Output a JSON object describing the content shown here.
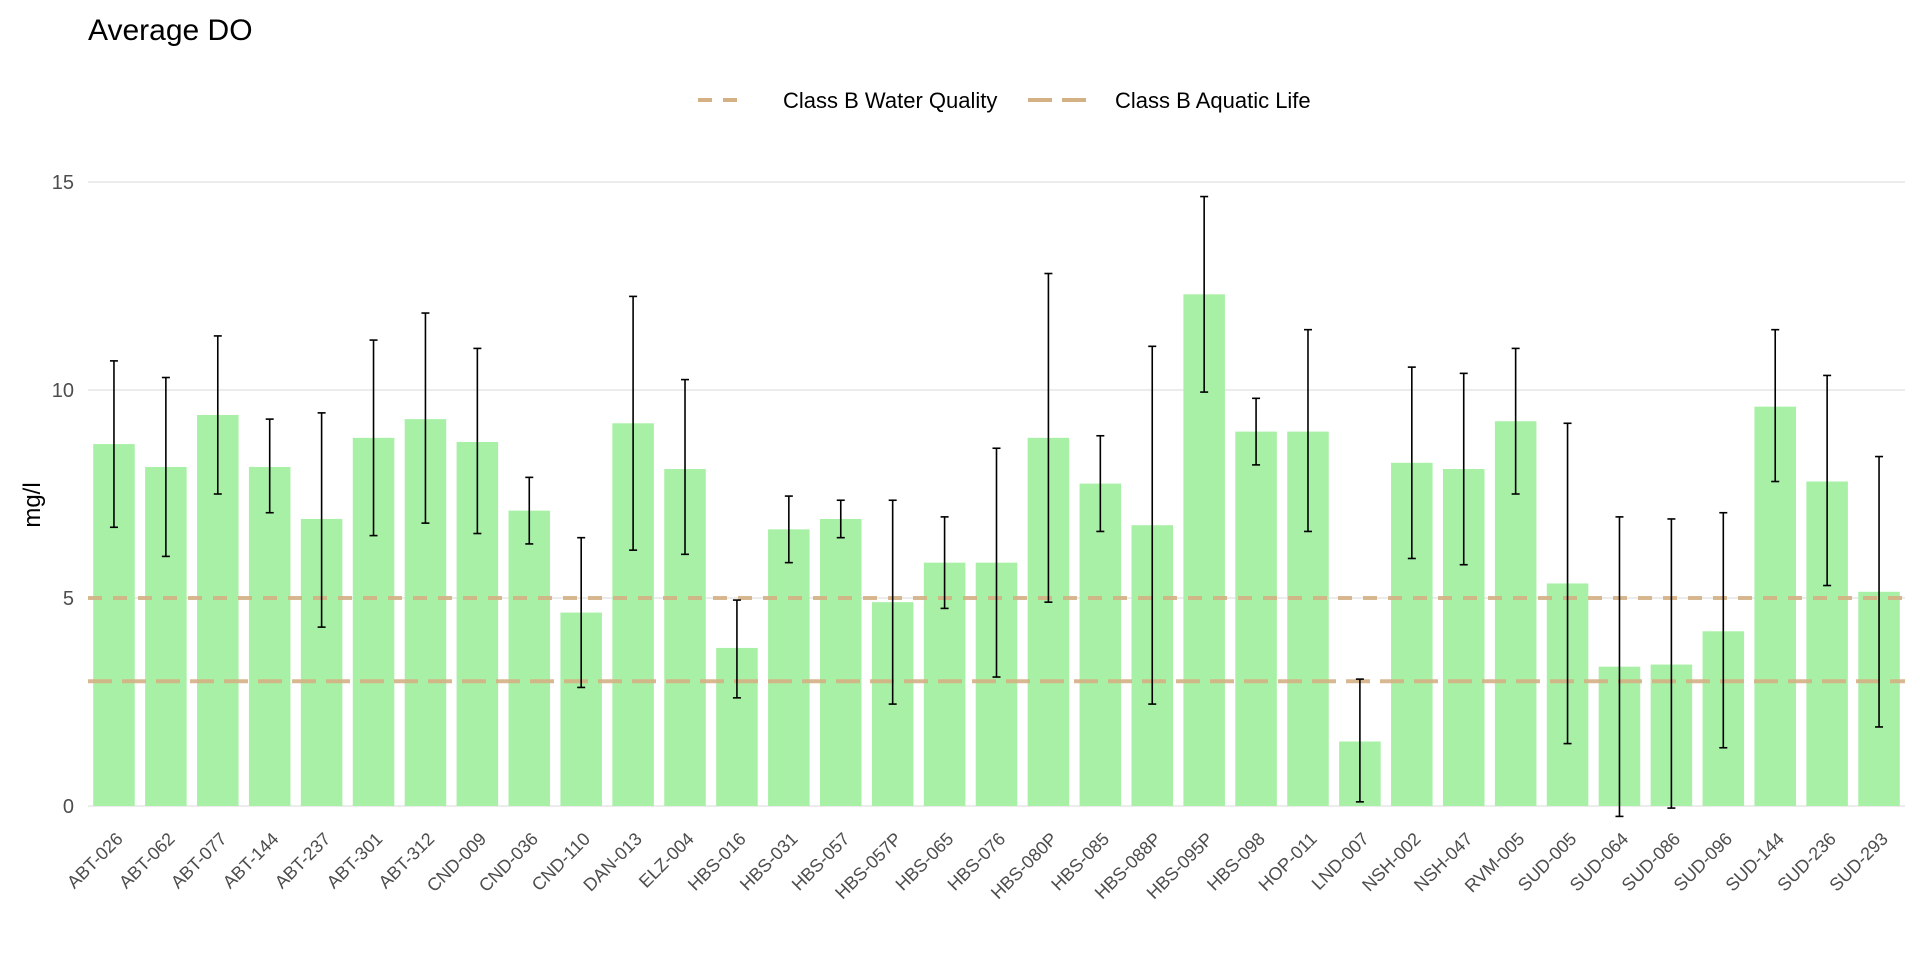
{
  "chart_data": {
    "type": "bar",
    "title": "Average DO",
    "xlabel": "",
    "ylabel": "mg/l",
    "ylim": [
      0,
      15
    ],
    "yticks": [
      0,
      5,
      10,
      15
    ],
    "grid": "horizontal",
    "legend_position": "top",
    "colors": {
      "bar": "#a8f0a6",
      "errorbar": "#000000",
      "reference_line": "#d4b184",
      "grid": "#e6e6e6"
    },
    "categories": [
      "ABT-026",
      "ABT-062",
      "ABT-077",
      "ABT-144",
      "ABT-237",
      "ABT-301",
      "ABT-312",
      "CND-009",
      "CND-036",
      "CND-110",
      "DAN-013",
      "ELZ-004",
      "HBS-016",
      "HBS-031",
      "HBS-057",
      "HBS-057P",
      "HBS-065",
      "HBS-076",
      "HBS-080P",
      "HBS-085",
      "HBS-088P",
      "HBS-095P",
      "HBS-098",
      "HOP-011",
      "LND-007",
      "NSH-002",
      "NSH-047",
      "RVM-005",
      "SUD-005",
      "SUD-064",
      "SUD-086",
      "SUD-096",
      "SUD-144",
      "SUD-236",
      "SUD-293"
    ],
    "values": [
      8.7,
      8.15,
      9.4,
      8.15,
      6.9,
      8.85,
      9.3,
      8.75,
      7.1,
      4.65,
      9.2,
      8.1,
      3.8,
      6.65,
      6.9,
      4.9,
      5.85,
      5.85,
      8.85,
      7.75,
      6.75,
      12.3,
      9.0,
      9.0,
      1.55,
      8.25,
      8.1,
      9.25,
      5.35,
      3.35,
      3.4,
      4.2,
      9.6,
      7.8,
      5.15
    ],
    "error_low": [
      6.7,
      6.0,
      7.5,
      7.05,
      4.3,
      6.5,
      6.8,
      6.55,
      6.3,
      2.85,
      6.15,
      6.05,
      2.6,
      5.85,
      6.45,
      2.45,
      4.75,
      3.1,
      4.9,
      6.6,
      2.45,
      9.95,
      8.2,
      6.6,
      0.1,
      5.95,
      5.8,
      7.5,
      1.5,
      -0.25,
      -0.05,
      1.4,
      7.8,
      5.3,
      1.9
    ],
    "error_high": [
      10.7,
      10.3,
      11.3,
      9.3,
      9.45,
      11.2,
      11.85,
      11.0,
      7.9,
      6.45,
      12.25,
      10.25,
      4.95,
      7.45,
      7.35,
      7.35,
      6.95,
      8.6,
      12.8,
      8.9,
      11.05,
      14.65,
      9.8,
      11.45,
      3.05,
      10.55,
      10.4,
      11.0,
      9.2,
      6.95,
      6.9,
      7.05,
      11.45,
      10.35,
      8.4
    ],
    "reference_lines": [
      {
        "name": "Class B Water Quality",
        "value": 5,
        "style": "dashed"
      },
      {
        "name": "Class B Aquatic Life",
        "value": 3,
        "style": "long-dashed"
      }
    ]
  }
}
